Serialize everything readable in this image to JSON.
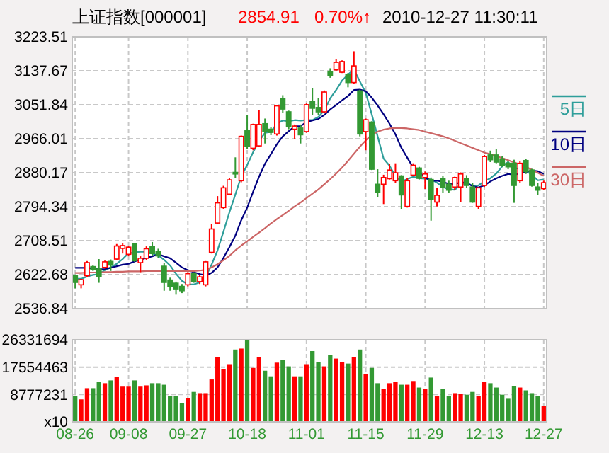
{
  "chart_data": [
    {
      "type": "candlestick",
      "title": "上证指数[000001]",
      "annotations": [
        "2854.91",
        "0.70%↑",
        "2010-12-27 11:30:11"
      ],
      "categories": [
        null,
        null,
        null,
        null,
        null,
        null,
        null,
        null,
        null,
        null,
        null,
        null,
        null,
        null,
        null,
        null,
        null,
        null,
        null,
        null,
        null,
        null,
        null,
        null,
        null,
        null,
        null,
        null,
        null,
        null,
        null,
        null,
        null,
        null,
        null,
        null,
        null,
        null,
        null,
        null,
        null,
        null,
        null,
        null,
        null,
        null,
        null,
        null,
        null,
        null,
        null,
        null,
        null,
        null,
        null,
        null,
        null,
        null,
        null,
        null,
        null,
        null,
        null,
        null,
        null,
        null,
        null,
        null,
        null,
        null,
        null,
        null,
        null,
        null,
        null,
        null,
        null,
        null,
        null,
        null
      ],
      "ohlc": [
        [
          2620,
          2623,
          2588,
          2603
        ],
        [
          2597,
          2612,
          2588,
          2610
        ],
        [
          2620,
          2657,
          2617,
          2653
        ],
        [
          2643,
          2647,
          2632,
          2635
        ],
        [
          2637,
          2662,
          2602,
          2617
        ],
        [
          2641,
          2658,
          2638,
          2655
        ],
        [
          2656,
          2661,
          2632,
          2647
        ],
        [
          2662,
          2700,
          2660,
          2695
        ],
        [
          2689,
          2703,
          2676,
          2696
        ],
        [
          2674,
          2696,
          2669,
          2692
        ],
        [
          2700,
          2702,
          2655,
          2658
        ],
        [
          2653,
          2669,
          2629,
          2664
        ],
        [
          2664,
          2694,
          2659,
          2688
        ],
        [
          2694,
          2705,
          2670,
          2676
        ],
        [
          2682,
          2688,
          2664,
          2670
        ],
        [
          2644,
          2653,
          2582,
          2603
        ],
        [
          2609,
          2615,
          2582,
          2593
        ],
        [
          2601,
          2605,
          2572,
          2585
        ],
        [
          2593,
          2599,
          2576,
          2582
        ],
        [
          2597,
          2629,
          2593,
          2625
        ],
        [
          2625,
          2629,
          2602,
          2605
        ],
        [
          2605,
          2623,
          2599,
          2617
        ],
        [
          2597,
          2657,
          2593,
          2655
        ],
        [
          2679,
          2750,
          2676,
          2738
        ],
        [
          2753,
          2821,
          2750,
          2804
        ],
        [
          2792,
          2847,
          2789,
          2842
        ],
        [
          2826,
          2866,
          2823,
          2862
        ],
        [
          2881,
          2919,
          2866,
          2877
        ],
        [
          2860,
          2974,
          2856,
          2972
        ],
        [
          2986,
          3025,
          2940,
          2946
        ],
        [
          2942,
          3004,
          2937,
          3002
        ],
        [
          2948,
          3039,
          2945,
          3002
        ],
        [
          3004,
          3017,
          2954,
          2984
        ],
        [
          2990,
          2995,
          2975,
          2982
        ],
        [
          2978,
          3051,
          2974,
          3049
        ],
        [
          3067,
          3076,
          3031,
          3041
        ],
        [
          3034,
          3037,
          2990,
          2996
        ],
        [
          2990,
          3002,
          2966,
          2998
        ],
        [
          2993,
          3002,
          2954,
          2976
        ],
        [
          2984,
          3055,
          2981,
          3052
        ],
        [
          3061,
          3093,
          3025,
          3043
        ],
        [
          3045,
          3069,
          3025,
          3034
        ],
        [
          3034,
          3088,
          3031,
          3084
        ],
        [
          3135,
          3144,
          3120,
          3126
        ],
        [
          3140,
          3167,
          3138,
          3159
        ],
        [
          3134,
          3164,
          3132,
          3161
        ],
        [
          3128,
          3132,
          3096,
          3108
        ],
        [
          3108,
          3187,
          3105,
          3150
        ],
        [
          3087,
          3090,
          2972,
          2978
        ],
        [
          2984,
          3017,
          2937,
          3014
        ],
        [
          3008,
          3010,
          2887,
          2889
        ],
        [
          2851,
          2889,
          2818,
          2830
        ],
        [
          2851,
          2875,
          2801,
          2868
        ],
        [
          2865,
          2903,
          2863,
          2887
        ],
        [
          2860,
          2904,
          2854,
          2880
        ],
        [
          2872,
          2874,
          2789,
          2824
        ],
        [
          2795,
          2866,
          2792,
          2860
        ],
        [
          2874,
          2904,
          2871,
          2899
        ],
        [
          2892,
          2895,
          2863,
          2866
        ],
        [
          2868,
          2883,
          2839,
          2877
        ],
        [
          2863,
          2868,
          2759,
          2812
        ],
        [
          2806,
          2842,
          2795,
          2823
        ],
        [
          2866,
          2872,
          2830,
          2844
        ],
        [
          2851,
          2860,
          2830,
          2836
        ],
        [
          2844,
          2870,
          2836,
          2868
        ],
        [
          2844,
          2881,
          2806,
          2877
        ],
        [
          2866,
          2874,
          2842,
          2848
        ],
        [
          2844,
          2854,
          2804,
          2806
        ],
        [
          2795,
          2844,
          2789,
          2842
        ],
        [
          2848,
          2925,
          2844,
          2921
        ],
        [
          2925,
          2936,
          2907,
          2913
        ],
        [
          2925,
          2940,
          2904,
          2907
        ],
        [
          2915,
          2922,
          2895,
          2899
        ],
        [
          2904,
          2910,
          2889,
          2895
        ],
        [
          2904,
          2913,
          2804,
          2848
        ],
        [
          2860,
          2909,
          2854,
          2904
        ],
        [
          2911,
          2915,
          2877,
          2883
        ],
        [
          2887,
          2890,
          2845,
          2848
        ],
        [
          2844,
          2854,
          2824,
          2836
        ],
        [
          2840,
          2860,
          2837,
          2854.91
        ]
      ],
      "colors": [
        "#339933",
        "#ff0000",
        "#ff0000",
        "#339933",
        "#339933",
        "#ff0000",
        "#339933",
        "#ff0000",
        "#ff0000",
        "#ff0000",
        "#339933",
        "#ff0000",
        "#ff0000",
        "#339933",
        "#339933",
        "#339933",
        "#339933",
        "#339933",
        "#339933",
        "#ff0000",
        "#339933",
        "#ff0000",
        "#ff0000",
        "#ff0000",
        "#ff0000",
        "#ff0000",
        "#ff0000",
        "#339933",
        "#ff0000",
        "#339933",
        "#ff0000",
        "#ff0000",
        "#339933",
        "#339933",
        "#ff0000",
        "#339933",
        "#339933",
        "#ff0000",
        "#339933",
        "#ff0000",
        "#339933",
        "#339933",
        "#ff0000",
        "#339933",
        "#ff0000",
        "#ff0000",
        "#339933",
        "#ff0000",
        "#339933",
        "#ff0000",
        "#339933",
        "#339933",
        "#ff0000",
        "#ff0000",
        "#ff0000",
        "#339933",
        "#ff0000",
        "#ff0000",
        "#339933",
        "#ff0000",
        "#339933",
        "#ff0000",
        "#339933",
        "#339933",
        "#ff0000",
        "#ff0000",
        "#339933",
        "#339933",
        "#ff0000",
        "#ff0000",
        "#339933",
        "#339933",
        "#339933",
        "#339933",
        "#339933",
        "#ff0000",
        "#339933",
        "#339933",
        "#339933",
        "#ff0000"
      ],
      "series": [
        {
          "type": "line",
          "name": "5日",
          "color": "#2e9e9a",
          "values": [
            2612,
            2612,
            2618,
            2622,
            2624,
            2634,
            2641,
            2650,
            2662,
            2677,
            2678,
            2681,
            2680,
            2676,
            2671,
            2660,
            2646,
            2625,
            2607,
            2598,
            2598,
            2603,
            2617,
            2648,
            2684,
            2731,
            2780,
            2825,
            2871,
            2900,
            2932,
            2960,
            2981,
            2983,
            3004,
            3012,
            3010,
            3013,
            3012,
            3013,
            3013,
            3021,
            3038,
            3068,
            3089,
            3113,
            3128,
            3141,
            3111,
            3082,
            3028,
            2972,
            2916,
            2898,
            2871,
            2858,
            2864,
            2870,
            2866,
            2865,
            2863,
            2855,
            2844,
            2838,
            2837,
            2850,
            2855,
            2847,
            2848,
            2859,
            2866,
            2878,
            2896,
            2907,
            2892,
            2890,
            2885,
            2875,
            2861,
            2863
          ]
        },
        {
          "type": "line",
          "name": "10日",
          "color": "#000080",
          "values": [
            2640,
            2640,
            2640,
            2638,
            2636,
            2637,
            2640,
            2644,
            2648,
            2650,
            2656,
            2661,
            2665,
            2669,
            2674,
            2669,
            2664,
            2653,
            2641,
            2634,
            2629,
            2624,
            2621,
            2627,
            2641,
            2665,
            2692,
            2721,
            2760,
            2792,
            2832,
            2870,
            2903,
            2927,
            2952,
            2972,
            2985,
            2997,
            2998,
            3008,
            3012,
            3016,
            3026,
            3040,
            3051,
            3063,
            3074,
            3089,
            3090,
            3086,
            3070,
            3050,
            3028,
            3004,
            2977,
            2943,
            2918,
            2893,
            2882,
            2868,
            2860,
            2860,
            2857,
            2852,
            2851,
            2856,
            2855,
            2846,
            2843,
            2848,
            2858,
            2866,
            2872,
            2877,
            2875,
            2878,
            2882,
            2886,
            2884,
            2877
          ]
        },
        {
          "type": "line",
          "name": "30日",
          "color": "#cc6666",
          "values": [
            2627,
            2627,
            2628,
            2628,
            2628,
            2629,
            2629,
            2630,
            2630,
            2631,
            2631,
            2631,
            2632,
            2632,
            2632,
            2632,
            2632,
            2632,
            2632,
            2632,
            2632,
            2633,
            2635,
            2641,
            2649,
            2659,
            2670,
            2684,
            2696,
            2707,
            2718,
            2729,
            2740,
            2752,
            2763,
            2773,
            2784,
            2795,
            2805,
            2816,
            2827,
            2838,
            2851,
            2864,
            2878,
            2893,
            2910,
            2928,
            2946,
            2962,
            2976,
            2984,
            2989,
            2992,
            2993,
            2993,
            2992,
            2990,
            2988,
            2984,
            2980,
            2976,
            2972,
            2967,
            2961,
            2955,
            2949,
            2943,
            2937,
            2931,
            2927,
            2922,
            2917,
            2912,
            2906,
            2901,
            2895,
            2888,
            2880,
            2872
          ]
        }
      ],
      "ylim": [
        2536.84,
        3223.51
      ],
      "yticks": [
        2536.84,
        2622.68,
        2708.51,
        2794.34,
        2880.17,
        2966.01,
        3051.84,
        3137.67,
        3223.51
      ],
      "grid": true,
      "legend": "right",
      "tick_labels": "y"
    },
    {
      "type": "bar",
      "categories": [
        "08-26",
        null,
        null,
        null,
        null,
        null,
        null,
        null,
        null,
        "09-08",
        null,
        null,
        null,
        null,
        null,
        null,
        null,
        null,
        null,
        "09-27",
        null,
        null,
        null,
        null,
        null,
        null,
        null,
        null,
        null,
        "10-18",
        null,
        null,
        null,
        null,
        null,
        null,
        null,
        null,
        null,
        "11-01",
        null,
        null,
        null,
        null,
        null,
        null,
        null,
        null,
        null,
        "11-15",
        null,
        null,
        null,
        null,
        null,
        null,
        null,
        null,
        null,
        "11-29",
        null,
        null,
        null,
        null,
        null,
        null,
        null,
        null,
        null,
        "12-13",
        null,
        null,
        null,
        null,
        null,
        null,
        null,
        null,
        null,
        "12-27"
      ],
      "values": [
        8300000,
        7200000,
        10800000,
        10800000,
        12800000,
        12400000,
        13300000,
        14500000,
        11300000,
        11300000,
        13300000,
        11300000,
        11700000,
        12400000,
        12400000,
        11900000,
        8300000,
        8300000,
        6000000,
        7700000,
        9600000,
        9200000,
        9200000,
        13600000,
        20800000,
        16900000,
        18500000,
        23200000,
        23500000,
        26300000,
        17300000,
        20800000,
        16400000,
        14600000,
        19000000,
        19900000,
        17800000,
        14600000,
        14600000,
        18500000,
        22700000,
        19100000,
        17800000,
        21400000,
        20300000,
        19100000,
        18700000,
        20800000,
        23200000,
        15400000,
        17300000,
        12400000,
        10500000,
        12400000,
        12800000,
        11900000,
        11900000,
        13100000,
        11000000,
        10500000,
        14200000,
        8300000,
        10500000,
        8300000,
        9200000,
        8900000,
        8700000,
        9600000,
        8300000,
        12800000,
        12400000,
        11000000,
        8700000,
        7400000,
        11400000,
        11000000,
        10100000,
        9200000,
        8300000,
        5100000
      ],
      "colors": [
        "#339933",
        "#ff0000",
        "#ff0000",
        "#339933",
        "#339933",
        "#ff0000",
        "#339933",
        "#ff0000",
        "#ff0000",
        "#ff0000",
        "#339933",
        "#ff0000",
        "#ff0000",
        "#339933",
        "#339933",
        "#339933",
        "#339933",
        "#339933",
        "#339933",
        "#ff0000",
        "#339933",
        "#ff0000",
        "#ff0000",
        "#ff0000",
        "#ff0000",
        "#ff0000",
        "#ff0000",
        "#339933",
        "#ff0000",
        "#339933",
        "#ff0000",
        "#ff0000",
        "#339933",
        "#339933",
        "#ff0000",
        "#339933",
        "#339933",
        "#ff0000",
        "#339933",
        "#ff0000",
        "#339933",
        "#339933",
        "#ff0000",
        "#339933",
        "#ff0000",
        "#ff0000",
        "#339933",
        "#ff0000",
        "#339933",
        "#ff0000",
        "#339933",
        "#339933",
        "#ff0000",
        "#ff0000",
        "#ff0000",
        "#339933",
        "#ff0000",
        "#ff0000",
        "#339933",
        "#ff0000",
        "#339933",
        "#ff0000",
        "#339933",
        "#339933",
        "#ff0000",
        "#ff0000",
        "#339933",
        "#339933",
        "#ff0000",
        "#ff0000",
        "#339933",
        "#339933",
        "#339933",
        "#339933",
        "#339933",
        "#ff0000",
        "#339933",
        "#339933",
        "#339933",
        "#ff0000"
      ],
      "ylim": [
        0,
        26331694
      ],
      "yticks": [
        {
          "value": 0,
          "label": "x10"
        },
        8777231,
        17554463,
        26331694
      ],
      "grid": true
    }
  ]
}
